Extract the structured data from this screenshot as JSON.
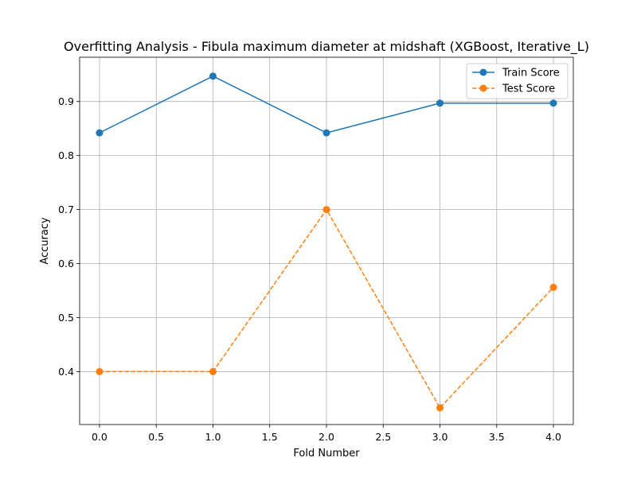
{
  "chart_data": {
    "type": "line",
    "title": "Overfitting Analysis - Fibula maximum diameter at midshaft (XGBoost, Iterative_L)",
    "xlabel": "Fold Number",
    "ylabel": "Accuracy",
    "xlim": [
      -0.175,
      4.175
    ],
    "ylim": [
      0.302,
      0.982
    ],
    "xticks": [
      0.0,
      0.5,
      1.0,
      1.5,
      2.0,
      2.5,
      3.0,
      3.5,
      4.0
    ],
    "xtick_labels": [
      "0.0",
      "0.5",
      "1.0",
      "1.5",
      "2.0",
      "2.5",
      "3.0",
      "3.5",
      "4.0"
    ],
    "yticks": [
      0.4,
      0.5,
      0.6,
      0.7,
      0.8,
      0.9
    ],
    "ytick_labels": [
      "0.4",
      "0.5",
      "0.6",
      "0.7",
      "0.8",
      "0.9"
    ],
    "grid": true,
    "legend_position": "top-right",
    "x": [
      0,
      1,
      2,
      3,
      4
    ],
    "series": [
      {
        "name": "Train Score",
        "values": [
          0.842,
          0.947,
          0.842,
          0.897,
          0.897
        ],
        "color": "#1f77b4",
        "linestyle": "solid",
        "marker": "circle"
      },
      {
        "name": "Test Score",
        "values": [
          0.4,
          0.4,
          0.7,
          0.333,
          0.556
        ],
        "color": "#ff7f0e",
        "linestyle": "dashed",
        "marker": "circle"
      }
    ]
  }
}
